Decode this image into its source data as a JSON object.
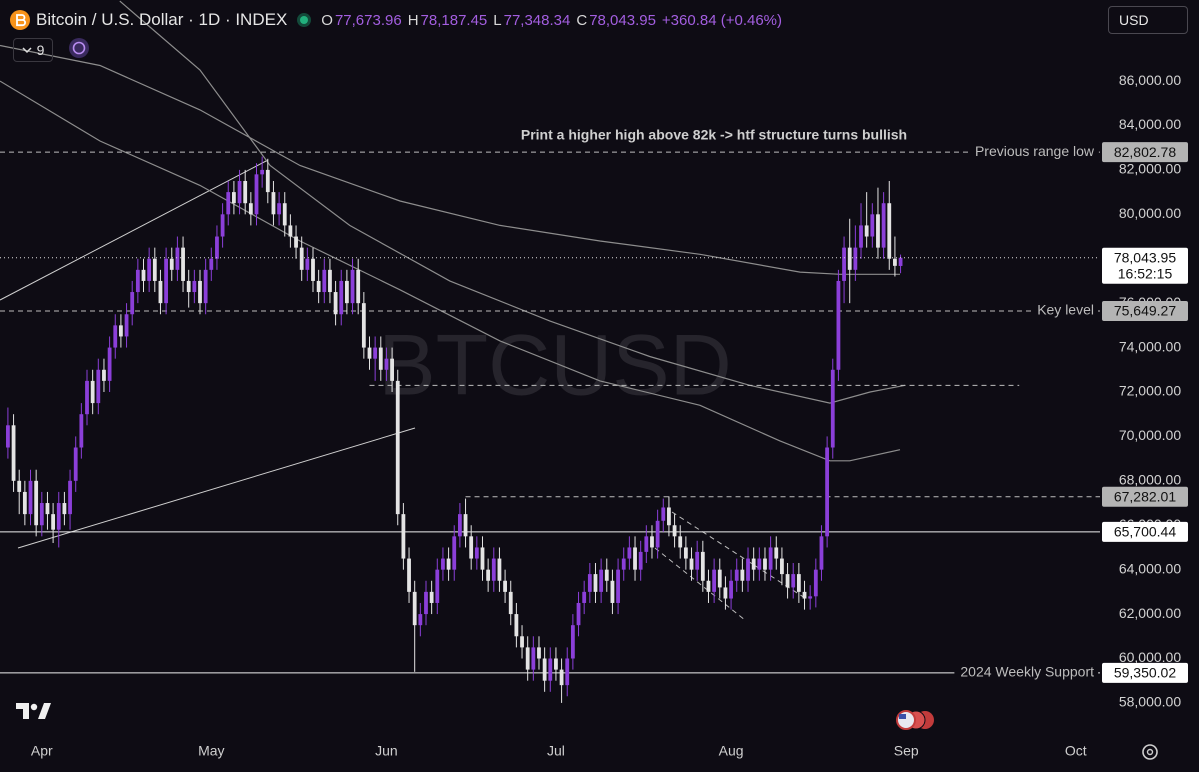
{
  "header": {
    "title": "Bitcoin / U.S. Dollar · 1D · INDEX",
    "ohlc": [
      {
        "key": "O",
        "value": "77,673.96"
      },
      {
        "key": "H",
        "value": "78,187.45"
      },
      {
        "key": "L",
        "value": "77,348.34"
      },
      {
        "key": "C",
        "value": "78,043.95"
      }
    ],
    "change": "+360.84 (+0.46%)",
    "indicator_count": 9,
    "currency": "USD"
  },
  "chart_data": {
    "type": "candlestick",
    "watermark": "BTCUSD",
    "annotation": "Print a higher high above 82k -> htf structure turns bullish",
    "up_color": "#8b3fd9",
    "down_color": "#e4e4e4",
    "open": [
      69500,
      70500,
      68000,
      67500,
      66500,
      68000,
      66000,
      67000,
      66500,
      65800,
      67000,
      66500,
      68000,
      69500,
      71000,
      72500,
      71500,
      73000,
      72500,
      74000,
      75000,
      74500,
      75500,
      76500,
      77500,
      77000,
      78000,
      77000,
      76000,
      78000,
      77500,
      78500,
      77000,
      76500,
      77000,
      76000,
      77500,
      78000,
      79000,
      80000,
      81000,
      80500,
      81500,
      80500,
      80000,
      81800,
      82000,
      81000,
      80000,
      80500,
      79500,
      79000,
      78500,
      77500,
      78000,
      77000,
      76500,
      77500,
      76500,
      75500,
      77000,
      76000,
      77500,
      76000,
      74000,
      73500,
      74000,
      73000,
      73500,
      72500,
      66500,
      64500,
      63000,
      61500,
      62000,
      63000,
      62500,
      64000,
      64500,
      64000,
      65500,
      66500,
      65500,
      64500,
      65000,
      64000,
      63500,
      64500,
      63500,
      63000,
      62000,
      61000,
      60500,
      59500,
      60500,
      60000,
      59000,
      60000,
      59500,
      58800,
      60000,
      61500,
      62500,
      63000,
      63800,
      63000,
      64000,
      63500,
      62500,
      64000,
      64500,
      65000,
      64000,
      64800,
      65500,
      65000,
      66200,
      66800,
      66000,
      65500,
      65000,
      64500,
      64000,
      64800,
      63500,
      63000,
      64000,
      63200,
      62700,
      63500,
      64000,
      63500,
      64500,
      64000,
      64500,
      64000,
      65000,
      64500,
      63800,
      63200,
      63800,
      63000,
      62700,
      62800,
      64000,
      65500,
      69500,
      73000,
      77000,
      78500,
      77500,
      78500,
      79500,
      79000,
      80000,
      78500,
      80500,
      78000,
      77673.96
    ],
    "high": [
      71300,
      71000,
      68500,
      68000,
      68500,
      68500,
      67500,
      67500,
      67000,
      67500,
      67500,
      68500,
      70000,
      71500,
      73000,
      73000,
      73500,
      73500,
      74500,
      75500,
      75500,
      76000,
      77000,
      78000,
      78000,
      78500,
      78500,
      77500,
      78500,
      78500,
      79000,
      79000,
      77500,
      77500,
      77500,
      78000,
      78500,
      79500,
      80500,
      81500,
      81500,
      82000,
      82000,
      81000,
      82300,
      82600,
      82500,
      81500,
      81000,
      81000,
      80000,
      79500,
      79000,
      78500,
      78500,
      77500,
      78000,
      78000,
      77000,
      77500,
      77500,
      78000,
      78000,
      76500,
      74500,
      74500,
      74500,
      74000,
      74000,
      73000,
      67000,
      65000,
      63500,
      62500,
      63500,
      63500,
      64500,
      65000,
      65000,
      66000,
      67000,
      67200,
      66000,
      65500,
      65500,
      64500,
      65000,
      65000,
      64000,
      63500,
      62500,
      61500,
      61000,
      61000,
      61000,
      60500,
      60500,
      60500,
      60000,
      60500,
      62000,
      63000,
      63500,
      64300,
      64300,
      64500,
      64500,
      64000,
      64500,
      65000,
      65500,
      65500,
      65300,
      66000,
      66000,
      66700,
      67200,
      67300,
      66500,
      66000,
      65500,
      65000,
      65300,
      65300,
      64000,
      64500,
      64500,
      63700,
      64000,
      64500,
      64500,
      65000,
      65000,
      65000,
      65000,
      65500,
      65500,
      65000,
      64300,
      64300,
      64300,
      63500,
      63300,
      64500,
      66000,
      70000,
      73500,
      77500,
      79000,
      79800,
      79500,
      80500,
      81000,
      80500,
      81200,
      81000,
      81500,
      79000,
      78187.45
    ],
    "low": [
      69000,
      67500,
      66500,
      66000,
      66000,
      65500,
      65500,
      65800,
      65200,
      65000,
      66000,
      65800,
      67500,
      69000,
      70500,
      71000,
      71000,
      72000,
      72000,
      73500,
      74000,
      74000,
      75000,
      76000,
      76500,
      76500,
      76500,
      75500,
      75500,
      77000,
      77000,
      76500,
      75800,
      76000,
      75500,
      75500,
      77000,
      77500,
      78500,
      79500,
      80000,
      80000,
      80000,
      79500,
      79500,
      81200,
      80500,
      79500,
      79500,
      79000,
      78500,
      78000,
      77000,
      77000,
      76500,
      76000,
      76000,
      76000,
      75000,
      75000,
      75500,
      75500,
      75500,
      73500,
      73000,
      72500,
      72500,
      72500,
      72000,
      66000,
      64000,
      62500,
      59400,
      61000,
      61500,
      62000,
      62000,
      63500,
      63500,
      63500,
      65000,
      65000,
      64000,
      64000,
      63500,
      63000,
      63000,
      63000,
      62500,
      61500,
      60500,
      60000,
      59000,
      59000,
      59500,
      58500,
      58500,
      59000,
      58000,
      58300,
      59500,
      61000,
      62000,
      62500,
      62500,
      62500,
      63000,
      62000,
      62000,
      63500,
      64000,
      63500,
      63500,
      64300,
      64500,
      64500,
      65700,
      65500,
      65000,
      64500,
      64000,
      63500,
      63500,
      63000,
      62500,
      62500,
      62700,
      62200,
      62200,
      63000,
      63000,
      63000,
      63500,
      63500,
      63500,
      63500,
      64000,
      63300,
      62700,
      62700,
      62500,
      62200,
      62200,
      62300,
      63500,
      65000,
      69000,
      72500,
      76000,
      76000,
      77000,
      78000,
      78500,
      78500,
      78000,
      78000,
      77500,
      77200,
      77348.34
    ],
    "close": [
      70500,
      68000,
      67500,
      66500,
      68000,
      66000,
      67000,
      66500,
      65800,
      67000,
      66500,
      68000,
      69500,
      71000,
      72500,
      71500,
      73000,
      72500,
      74000,
      75000,
      74500,
      75500,
      76500,
      77500,
      77000,
      78000,
      77000,
      76000,
      78000,
      77500,
      78500,
      77000,
      76500,
      77000,
      76000,
      77500,
      78000,
      79000,
      80000,
      81000,
      80500,
      81500,
      80500,
      80000,
      81800,
      82000,
      81000,
      80000,
      80500,
      79500,
      79000,
      78500,
      77500,
      78000,
      77000,
      76500,
      77500,
      76500,
      75500,
      77000,
      76000,
      77500,
      76000,
      74000,
      73500,
      74000,
      73000,
      73500,
      72500,
      66500,
      64500,
      63000,
      61500,
      62000,
      63000,
      62500,
      64000,
      64500,
      64000,
      65500,
      66500,
      65500,
      64500,
      65000,
      64000,
      63500,
      64500,
      63500,
      63000,
      62000,
      61000,
      60500,
      59500,
      60500,
      60000,
      59000,
      60000,
      59500,
      58800,
      60000,
      61500,
      62500,
      63000,
      63800,
      63000,
      64000,
      63500,
      62500,
      64000,
      64500,
      65000,
      64000,
      64800,
      65500,
      65000,
      66200,
      66800,
      66000,
      65500,
      65000,
      64500,
      64000,
      64800,
      63500,
      63000,
      64000,
      63200,
      62700,
      63500,
      64000,
      63500,
      64500,
      64000,
      64500,
      64000,
      65000,
      64500,
      63800,
      63200,
      63800,
      63000,
      62700,
      62800,
      64000,
      65500,
      69500,
      73000,
      77000,
      78500,
      77500,
      78500,
      79500,
      79000,
      80000,
      78500,
      80500,
      78000,
      77680,
      78043.95
    ],
    "xlim": [
      -1.4,
      193.3
    ],
    "xticks": [
      {
        "value": 6,
        "label": "Apr"
      },
      {
        "value": 36,
        "label": "May"
      },
      {
        "value": 67,
        "label": "Jun"
      },
      {
        "value": 97,
        "label": "Jul"
      },
      {
        "value": 128,
        "label": "Aug"
      },
      {
        "value": 159,
        "label": "Sep"
      },
      {
        "value": 189,
        "label": "Oct"
      }
    ],
    "ylim": [
      56330,
      89650
    ],
    "yticks": [
      {
        "value": 58000,
        "label": "58,000.00"
      },
      {
        "value": 60000,
        "label": "60,000.00"
      },
      {
        "value": 62000,
        "label": "62,000.00"
      },
      {
        "value": 64000,
        "label": "64,000.00"
      },
      {
        "value": 66000,
        "label": "66,000.00"
      },
      {
        "value": 68000,
        "label": "68,000.00"
      },
      {
        "value": 70000,
        "label": "70,000.00"
      },
      {
        "value": 72000,
        "label": "72,000.00"
      },
      {
        "value": 74000,
        "label": "74,000.00"
      },
      {
        "value": 76000,
        "label": "76,000.00"
      },
      {
        "value": 78000,
        "label": "78,000.00"
      },
      {
        "value": 80000,
        "label": "80,000.00"
      },
      {
        "value": 82000,
        "label": "82,000.00"
      },
      {
        "value": 84000,
        "label": "84,000.00"
      },
      {
        "value": 86000,
        "label": "86,000.00"
      }
    ],
    "grid": false,
    "moving_averages": [
      {
        "color": "#8d8d8d",
        "x": [
          -1.4,
          16.3,
          34.0,
          51.7,
          69.4,
          87.1,
          104.8,
          122.5,
          140.2,
          147.3,
          157.9
        ],
        "values": [
          87600,
          86700,
          84700,
          82200,
          80600,
          79500,
          78800,
          78200,
          77400,
          77300,
          77300
        ]
      },
      {
        "color": "#8d8d8d",
        "x": [
          19.8,
          34.0,
          46.4,
          60.5,
          78.2,
          95.9,
          113.6,
          131.3,
          145.5,
          152.6,
          158.8
        ],
        "values": [
          89600,
          86500,
          82200,
          79500,
          77000,
          75200,
          73600,
          72300,
          71500,
          72000,
          72300
        ]
      },
      {
        "color": "#8d8d8d",
        "x": [
          -1.4,
          16.3,
          34.0,
          51.7,
          69.4,
          87.1,
          104.8,
          122.5,
          136.6,
          145.5,
          149.0,
          157.9
        ],
        "values": [
          86000,
          83300,
          81300,
          78800,
          76600,
          74300,
          72500,
          71400,
          69800,
          68900,
          68900,
          69400
        ]
      }
    ],
    "levels": [
      {
        "value": 82802.78,
        "label": "82,802.78",
        "note": "Previous range low",
        "style": "dashed",
        "tag_color": "#b4b4b4"
      },
      {
        "value": 75649.27,
        "label": "75,649.27",
        "note": "Key level",
        "style": "dashed",
        "tag_color": "#b4b4b4"
      },
      {
        "value": 72300,
        "style": "dashed",
        "from": 64,
        "to": 179
      },
      {
        "value": 67282.01,
        "label": "67,282.01",
        "style": "dashed",
        "from": 81,
        "tag_color": "#b4b4b4"
      },
      {
        "value": 65700.44,
        "label": "65,700.44",
        "style": "solid",
        "tag_color": "#ffffff"
      },
      {
        "value": 59350.02,
        "label": "59,350.02",
        "note": "2024 Weekly Support",
        "style": "solid",
        "tag_color": "#ffffff"
      }
    ],
    "last_price": {
      "value": 78043.95,
      "label": "78,043.95",
      "countdown": "16:52:15"
    }
  }
}
